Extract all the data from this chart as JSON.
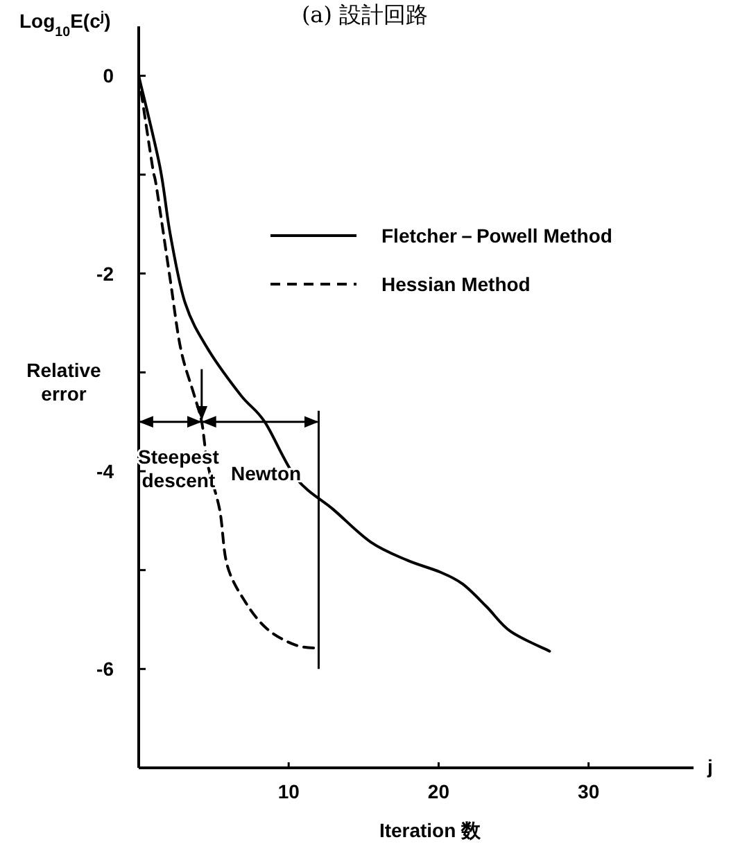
{
  "chart_data": {
    "type": "line",
    "title": "(a) 設計回路",
    "xlabel": "Iteration 数",
    "ylabel": "Log$_{10}$E(c$^{j}$)",
    "xlim": [
      0,
      37
    ],
    "ylim": [
      -7,
      0.5
    ],
    "xticks": [
      10,
      20,
      30
    ],
    "yticks": [
      0,
      {
        "value": -1,
        "label": null
      },
      -2,
      {
        "value": -3,
        "label": null
      },
      -4,
      {
        "value": -5,
        "label": null
      },
      -6
    ],
    "grid": false,
    "legend": "top right",
    "marker": "none",
    "series": [
      {
        "name": "Fletcher－Powell Method",
        "color": "#000000",
        "line_style": "solid",
        "x": [
          0,
          1.4,
          2.1,
          3.1,
          4.6,
          6.8,
          8.4,
          10.5,
          13.0,
          15.5,
          17.9,
          20.1,
          21.6,
          23.2,
          24.8,
          27.4
        ],
        "values": [
          0,
          -0.91,
          -1.6,
          -2.3,
          -2.76,
          -3.23,
          -3.5,
          -4.07,
          -4.39,
          -4.72,
          -4.9,
          -5.02,
          -5.14,
          -5.37,
          -5.62,
          -5.82
        ]
      },
      {
        "name": "Hessian Method",
        "color": "#000000",
        "line_style": "dashed",
        "x": [
          0,
          0.9,
          1.2,
          2.1,
          2.8,
          3.7,
          4.2,
          4.6,
          5.4,
          5.9,
          7.1,
          8.6,
          10.5,
          12.1
        ],
        "values": [
          0,
          -0.9,
          -1.14,
          -2.06,
          -2.76,
          -3.23,
          -3.5,
          -3.93,
          -4.39,
          -4.95,
          -5.32,
          -5.6,
          -5.76,
          -5.79
        ]
      }
    ],
    "ref_lines": [
      {
        "axis": "x",
        "value": 4.2,
        "label": "Steepest descent"
      },
      {
        "axis": "x",
        "value": 12,
        "label": "Newton"
      }
    ],
    "annotations": [
      "Relative error",
      "j"
    ]
  }
}
